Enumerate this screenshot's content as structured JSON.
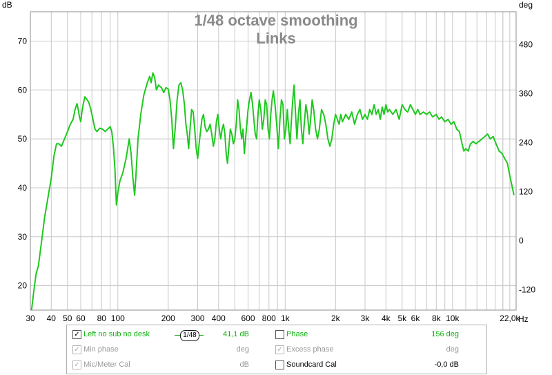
{
  "chart_data": {
    "type": "line",
    "title": "1/48 octave smoothing",
    "subtitle": "Links",
    "left_unit": "dB",
    "right_unit": "deg",
    "x_unit": "Hz",
    "x_scale": "log",
    "xlim": [
      30,
      24000
    ],
    "ylim": [
      15,
      76
    ],
    "y2lim": [
      -170,
      560
    ],
    "grid": true,
    "x_ticks": [
      {
        "value": 30,
        "label": "30"
      },
      {
        "value": 40,
        "label": "40"
      },
      {
        "value": 50,
        "label": "50"
      },
      {
        "value": 60,
        "label": "60"
      },
      {
        "value": 80,
        "label": "80"
      },
      {
        "value": 100,
        "label": "100"
      },
      {
        "value": 200,
        "label": "200"
      },
      {
        "value": 300,
        "label": "300"
      },
      {
        "value": 400,
        "label": "400"
      },
      {
        "value": 600,
        "label": "600"
      },
      {
        "value": 800,
        "label": "800"
      },
      {
        "value": 1000,
        "label": "1k"
      },
      {
        "value": 2000,
        "label": "2k"
      },
      {
        "value": 3000,
        "label": "3k"
      },
      {
        "value": 4000,
        "label": "4k"
      },
      {
        "value": 5000,
        "label": "5k"
      },
      {
        "value": 6000,
        "label": "6k"
      },
      {
        "value": 8000,
        "label": "8k"
      },
      {
        "value": 10000,
        "label": "10k"
      },
      {
        "value": 22000,
        "label": "22,0k"
      }
    ],
    "y_ticks": [
      20,
      30,
      40,
      50,
      60,
      70
    ],
    "y2_ticks": [
      -120,
      0,
      120,
      240,
      360,
      480
    ],
    "series": [
      {
        "name": "Left no sub no desk",
        "color": "#1ec81e",
        "points": [
          [
            30.5,
            15
          ],
          [
            31.5,
            19
          ],
          [
            32.5,
            22.5
          ],
          [
            33.5,
            24
          ],
          [
            35,
            29
          ],
          [
            36.5,
            34
          ],
          [
            38,
            37.5
          ],
          [
            40,
            42
          ],
          [
            41.5,
            46.5
          ],
          [
            43,
            49
          ],
          [
            44.5,
            49
          ],
          [
            46,
            48.5
          ],
          [
            48,
            50
          ],
          [
            50,
            51.5
          ],
          [
            52,
            53
          ],
          [
            54,
            54
          ],
          [
            55.5,
            56
          ],
          [
            57,
            57.2
          ],
          [
            58,
            56
          ],
          [
            59,
            54.5
          ],
          [
            60,
            53.5
          ],
          [
            61,
            55.5
          ],
          [
            62,
            57
          ],
          [
            63.5,
            58.6
          ],
          [
            65,
            58.2
          ],
          [
            67,
            57.5
          ],
          [
            69,
            56
          ],
          [
            71,
            54
          ],
          [
            73,
            52
          ],
          [
            75,
            51.5
          ],
          [
            78,
            52.2
          ],
          [
            81,
            52
          ],
          [
            84,
            51.5
          ],
          [
            87,
            52
          ],
          [
            90,
            52.5
          ],
          [
            92,
            51.5
          ],
          [
            94,
            48.5
          ],
          [
            96,
            44
          ],
          [
            98,
            36.5
          ],
          [
            100,
            39
          ],
          [
            103,
            41.5
          ],
          [
            107,
            43
          ],
          [
            112,
            46
          ],
          [
            117,
            50
          ],
          [
            120,
            47
          ],
          [
            123,
            42
          ],
          [
            126,
            38.5
          ],
          [
            128,
            42
          ],
          [
            132,
            50
          ],
          [
            137,
            55
          ],
          [
            143,
            59
          ],
          [
            150,
            61.5
          ],
          [
            155,
            62.8
          ],
          [
            158,
            61.5
          ],
          [
            162,
            63.5
          ],
          [
            166,
            62.5
          ],
          [
            170,
            60
          ],
          [
            175,
            61
          ],
          [
            182,
            60.5
          ],
          [
            188,
            59.5
          ],
          [
            194,
            60.5
          ],
          [
            200,
            60.2
          ],
          [
            205,
            58
          ],
          [
            210,
            54
          ],
          [
            215,
            48
          ],
          [
            220,
            52
          ],
          [
            226,
            58
          ],
          [
            232,
            61
          ],
          [
            238,
            61.5
          ],
          [
            244,
            60
          ],
          [
            250,
            57
          ],
          [
            255,
            53
          ],
          [
            260,
            51
          ],
          [
            265,
            48
          ],
          [
            270,
            52
          ],
          [
            276,
            56
          ],
          [
            282,
            55.5
          ],
          [
            288,
            52
          ],
          [
            294,
            48
          ],
          [
            300,
            46
          ],
          [
            306,
            49
          ],
          [
            312,
            51.5
          ],
          [
            318,
            54
          ],
          [
            325,
            55
          ],
          [
            332,
            52.5
          ],
          [
            340,
            51.5
          ],
          [
            348,
            52
          ],
          [
            356,
            53
          ],
          [
            364,
            51
          ],
          [
            372,
            48.5
          ],
          [
            380,
            50
          ],
          [
            388,
            53.5
          ],
          [
            396,
            55
          ],
          [
            404,
            52
          ],
          [
            412,
            50
          ],
          [
            420,
            52
          ],
          [
            428,
            53
          ],
          [
            436,
            51
          ],
          [
            444,
            47
          ],
          [
            452,
            45
          ],
          [
            460,
            48
          ],
          [
            470,
            52
          ],
          [
            480,
            51
          ],
          [
            490,
            49
          ],
          [
            500,
            50
          ],
          [
            510,
            53
          ],
          [
            520,
            58
          ],
          [
            530,
            56
          ],
          [
            540,
            52
          ],
          [
            550,
            50
          ],
          [
            560,
            52
          ],
          [
            570,
            47
          ],
          [
            580,
            50
          ],
          [
            590,
            53
          ],
          [
            600,
            56
          ],
          [
            612,
            58
          ],
          [
            625,
            59.5
          ],
          [
            638,
            57
          ],
          [
            650,
            54
          ],
          [
            662,
            51
          ],
          [
            675,
            50
          ],
          [
            688,
            55
          ],
          [
            700,
            58
          ],
          [
            715,
            56
          ],
          [
            730,
            52
          ],
          [
            745,
            54
          ],
          [
            760,
            58
          ],
          [
            775,
            57
          ],
          [
            790,
            52
          ],
          [
            805,
            50
          ],
          [
            820,
            55
          ],
          [
            835,
            58
          ],
          [
            850,
            59.8
          ],
          [
            870,
            57
          ],
          [
            890,
            53
          ],
          [
            910,
            48
          ],
          [
            930,
            54
          ],
          [
            950,
            58
          ],
          [
            970,
            57
          ],
          [
            990,
            50
          ],
          [
            1010,
            52
          ],
          [
            1030,
            56
          ],
          [
            1050,
            52
          ],
          [
            1070,
            49
          ],
          [
            1090,
            54
          ],
          [
            1110,
            58
          ],
          [
            1130,
            61
          ],
          [
            1150,
            56
          ],
          [
            1175,
            50
          ],
          [
            1200,
            55
          ],
          [
            1225,
            58
          ],
          [
            1250,
            52
          ],
          [
            1275,
            49
          ],
          [
            1300,
            53
          ],
          [
            1330,
            57
          ],
          [
            1360,
            55
          ],
          [
            1390,
            51
          ],
          [
            1420,
            54
          ],
          [
            1450,
            58
          ],
          [
            1480,
            56
          ],
          [
            1520,
            52
          ],
          [
            1560,
            50
          ],
          [
            1600,
            52
          ],
          [
            1650,
            56
          ],
          [
            1700,
            55
          ],
          [
            1750,
            53
          ],
          [
            1800,
            50
          ],
          [
            1850,
            48.5
          ],
          [
            1900,
            50
          ],
          [
            1950,
            53
          ],
          [
            2000,
            55
          ],
          [
            2050,
            54
          ],
          [
            2100,
            53
          ],
          [
            2150,
            55
          ],
          [
            2200,
            53.5
          ],
          [
            2300,
            55
          ],
          [
            2400,
            54
          ],
          [
            2500,
            55.5
          ],
          [
            2600,
            53
          ],
          [
            2700,
            55
          ],
          [
            2800,
            56
          ],
          [
            2900,
            54
          ],
          [
            3000,
            55
          ],
          [
            3100,
            54
          ],
          [
            3200,
            56
          ],
          [
            3300,
            55
          ],
          [
            3400,
            57
          ],
          [
            3500,
            55
          ],
          [
            3600,
            56
          ],
          [
            3700,
            54
          ],
          [
            3800,
            56.5
          ],
          [
            3900,
            55
          ],
          [
            4000,
            57
          ],
          [
            4100,
            55.5
          ],
          [
            4200,
            56
          ],
          [
            4400,
            55
          ],
          [
            4600,
            56
          ],
          [
            4800,
            54
          ],
          [
            5000,
            57
          ],
          [
            5200,
            56
          ],
          [
            5400,
            55.5
          ],
          [
            5600,
            57
          ],
          [
            5800,
            56
          ],
          [
            6000,
            55
          ],
          [
            6200,
            56
          ],
          [
            6400,
            55
          ],
          [
            6700,
            55.5
          ],
          [
            7000,
            55
          ],
          [
            7300,
            55.5
          ],
          [
            7600,
            54.5
          ],
          [
            8000,
            55
          ],
          [
            8300,
            54
          ],
          [
            8600,
            54.5
          ],
          [
            9000,
            53.5
          ],
          [
            9400,
            54
          ],
          [
            9800,
            53
          ],
          [
            10200,
            53.5
          ],
          [
            10600,
            52
          ],
          [
            11000,
            51.5
          ],
          [
            11400,
            49
          ],
          [
            11700,
            47.5
          ],
          [
            12000,
            48
          ],
          [
            12400,
            47.5
          ],
          [
            12800,
            49
          ],
          [
            13300,
            49.5
          ],
          [
            13800,
            49
          ],
          [
            14400,
            49.5
          ],
          [
            15000,
            50
          ],
          [
            15600,
            50.5
          ],
          [
            16200,
            51
          ],
          [
            16800,
            50
          ],
          [
            17500,
            50.5
          ],
          [
            18200,
            49
          ],
          [
            19000,
            47.5
          ],
          [
            19800,
            47
          ],
          [
            20500,
            46
          ],
          [
            21300,
            45
          ],
          [
            22000,
            42.5
          ],
          [
            22800,
            40
          ],
          [
            23300,
            38.5
          ]
        ]
      }
    ]
  },
  "legend": {
    "items": [
      {
        "label": "Left no sub no desk",
        "checked": true,
        "value": "41,1 dB",
        "smoothing": "1/48"
      },
      {
        "label": "Phase",
        "checked": false,
        "value": "156 deg"
      },
      {
        "label": "Min phase",
        "checked": true,
        "value": "deg"
      },
      {
        "label": "Excess phase",
        "checked": true,
        "value": "deg"
      },
      {
        "label": "Mic/Meter Cal",
        "checked": true,
        "value": "dB"
      },
      {
        "label": "Soundcard Cal",
        "checked": false,
        "value": "-0,0 dB"
      }
    ]
  }
}
